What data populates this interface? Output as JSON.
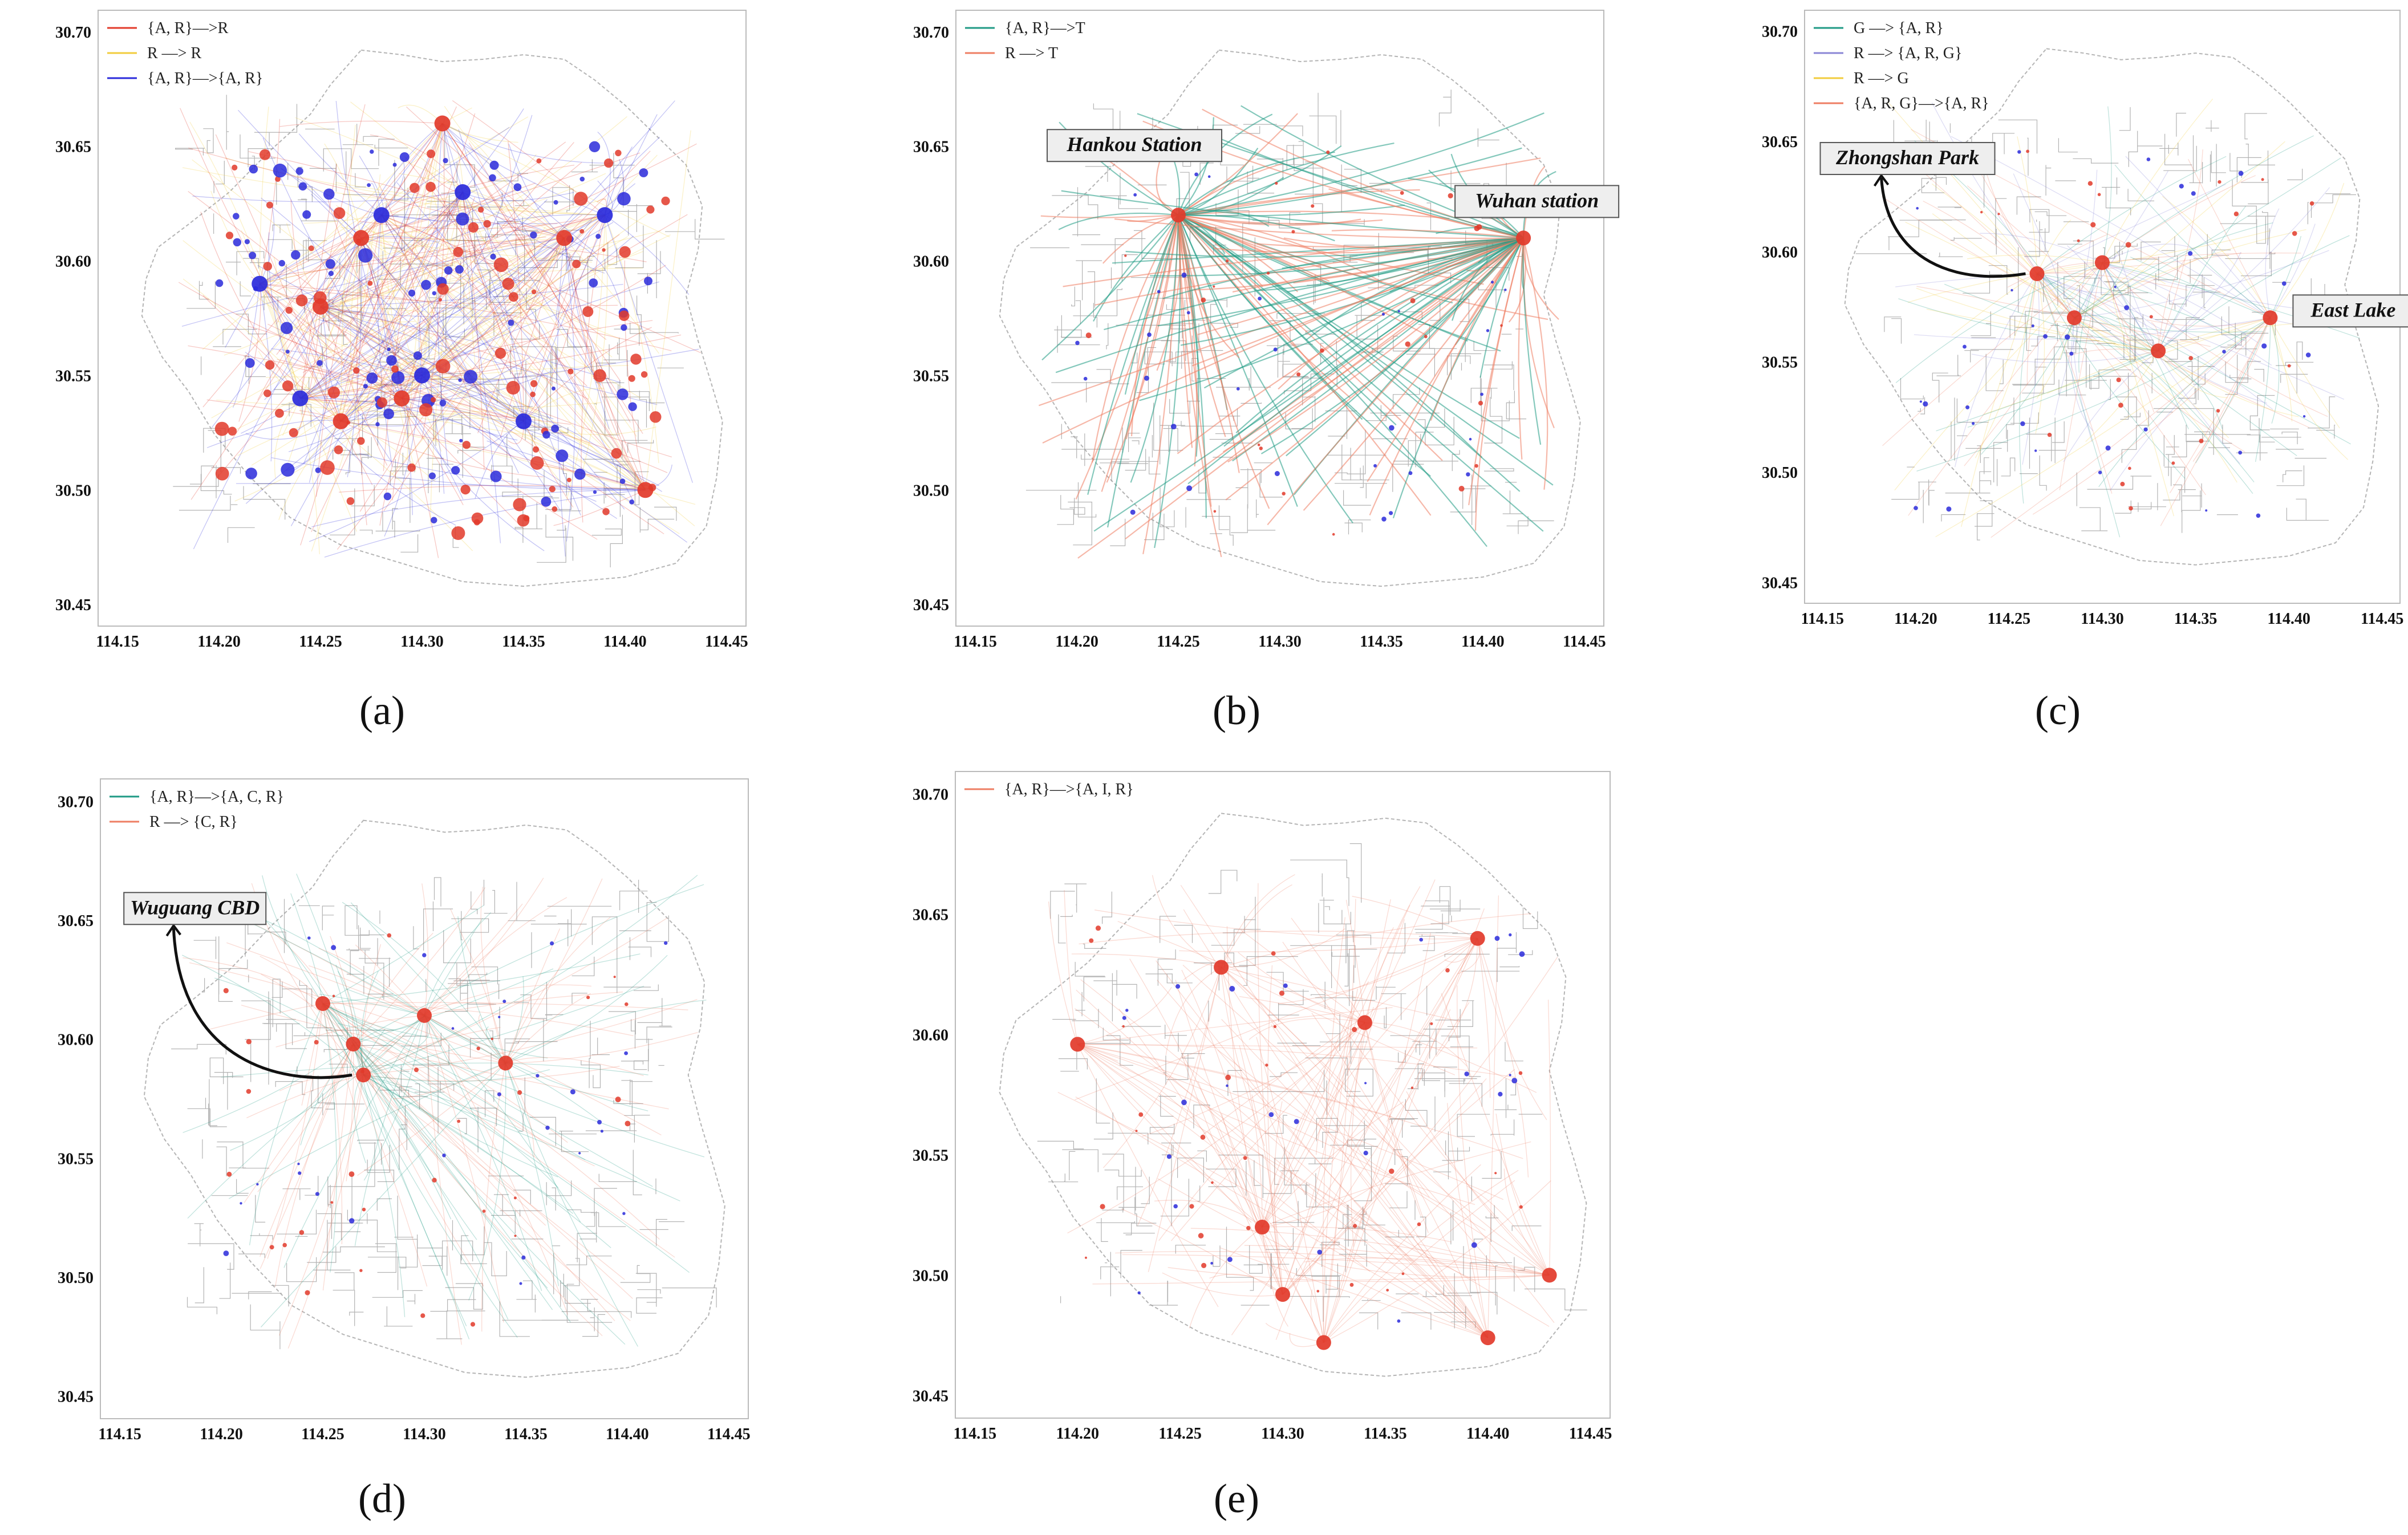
{
  "figure": {
    "colors": {
      "red": "#e23a2a",
      "blue": "#2a2adb",
      "teal": "#1f9a84",
      "orange": "#ee7e63",
      "yellow": "#f2cc3d",
      "purple": "#8a86d6",
      "road": "#9a9a9a",
      "frame": "#bbbbbb"
    }
  },
  "chart_data": [
    {
      "panel": "a",
      "caption": "(a)",
      "type": "scatter",
      "xlim": [
        114.15,
        114.45
      ],
      "ylim": [
        30.45,
        30.7
      ],
      "xticks": [
        "114.15",
        "114.20",
        "114.25",
        "114.30",
        "114.35",
        "114.40",
        "114.45"
      ],
      "yticks": [
        "30.45",
        "30.50",
        "30.55",
        "30.60",
        "30.65",
        "30.70"
      ],
      "legend": [
        {
          "label": "{A, R}—>R",
          "color": "red"
        },
        {
          "label": "R —> R",
          "color": "yellow"
        },
        {
          "label": "{A, R}—>{A, R}",
          "color": "blue"
        }
      ],
      "annotations": [],
      "hubs": [
        {
          "x": 114.27,
          "y": 30.61,
          "series": "red"
        },
        {
          "x": 114.28,
          "y": 30.62,
          "series": "blue"
        },
        {
          "x": 114.25,
          "y": 30.58,
          "series": "red"
        },
        {
          "x": 114.22,
          "y": 30.59,
          "series": "blue"
        },
        {
          "x": 114.3,
          "y": 30.55,
          "series": "blue"
        },
        {
          "x": 114.32,
          "y": 30.63,
          "series": "blue"
        },
        {
          "x": 114.39,
          "y": 30.62,
          "series": "blue"
        },
        {
          "x": 114.37,
          "y": 30.61,
          "series": "red"
        },
        {
          "x": 114.35,
          "y": 30.53,
          "series": "blue"
        },
        {
          "x": 114.29,
          "y": 30.54,
          "series": "red"
        },
        {
          "x": 114.24,
          "y": 30.54,
          "series": "blue"
        },
        {
          "x": 114.41,
          "y": 30.5,
          "series": "red"
        },
        {
          "x": 114.26,
          "y": 30.53,
          "series": "red"
        },
        {
          "x": 114.31,
          "y": 30.66,
          "series": "red"
        }
      ]
    },
    {
      "panel": "b",
      "caption": "(b)",
      "type": "scatter",
      "xlim": [
        114.15,
        114.45
      ],
      "ylim": [
        30.45,
        30.7
      ],
      "xticks": [
        "114.15",
        "114.20",
        "114.25",
        "114.30",
        "114.35",
        "114.40",
        "114.45"
      ],
      "yticks": [
        "30.45",
        "30.50",
        "30.55",
        "30.60",
        "30.65",
        "30.70"
      ],
      "legend": [
        {
          "label": "{A, R}—>T",
          "color": "teal"
        },
        {
          "label": "R —> T",
          "color": "orange"
        }
      ],
      "annotations": [
        {
          "text": "Hankou Station",
          "x": 114.25,
          "y": 30.62
        },
        {
          "text": "Wuhan station",
          "x": 114.42,
          "y": 30.61
        }
      ],
      "hubs": [
        {
          "x": 114.25,
          "y": 30.62,
          "series": "red"
        },
        {
          "x": 114.42,
          "y": 30.61,
          "series": "red"
        }
      ]
    },
    {
      "panel": "c",
      "caption": "(c)",
      "type": "scatter",
      "xlim": [
        114.15,
        114.45
      ],
      "ylim": [
        30.45,
        30.7
      ],
      "xticks": [
        "114.15",
        "114.20",
        "114.25",
        "114.30",
        "114.35",
        "114.40",
        "114.45"
      ],
      "yticks": [
        "30.45",
        "30.50",
        "30.55",
        "30.60",
        "30.65",
        "30.70"
      ],
      "legend": [
        {
          "label": "G —> {A, R}",
          "color": "teal"
        },
        {
          "label": "R —> {A, R, G}",
          "color": "purple"
        },
        {
          "label": "R —> G",
          "color": "yellow"
        },
        {
          "label": "{A, R, G}—>{A, R}",
          "color": "orange"
        }
      ],
      "annotations": [
        {
          "text": "Zhongshan Park",
          "x": 114.265,
          "y": 30.59
        },
        {
          "text": "East Lake",
          "x": 114.39,
          "y": 30.57
        }
      ],
      "hubs": [
        {
          "x": 114.265,
          "y": 30.59,
          "series": "red"
        },
        {
          "x": 114.39,
          "y": 30.57,
          "series": "red"
        },
        {
          "x": 114.285,
          "y": 30.57,
          "series": "red"
        },
        {
          "x": 114.3,
          "y": 30.595,
          "series": "red"
        },
        {
          "x": 114.33,
          "y": 30.555,
          "series": "red"
        }
      ]
    },
    {
      "panel": "d",
      "caption": "(d)",
      "type": "scatter",
      "xlim": [
        114.15,
        114.45
      ],
      "ylim": [
        30.45,
        30.7
      ],
      "xticks": [
        "114.15",
        "114.20",
        "114.25",
        "114.30",
        "114.35",
        "114.40",
        "114.45"
      ],
      "yticks": [
        "30.45",
        "30.50",
        "30.55",
        "30.60",
        "30.65",
        "30.70"
      ],
      "legend": [
        {
          "label": "{A, R}—>{A, C, R}",
          "color": "teal"
        },
        {
          "label": "R —> {C, R}",
          "color": "orange"
        }
      ],
      "annotations": [
        {
          "text": "Wuguang CBD",
          "x": 114.27,
          "y": 30.585
        }
      ],
      "hubs": [
        {
          "x": 114.27,
          "y": 30.585,
          "series": "red"
        },
        {
          "x": 114.265,
          "y": 30.598,
          "series": "red"
        },
        {
          "x": 114.25,
          "y": 30.615,
          "series": "red"
        },
        {
          "x": 114.3,
          "y": 30.61,
          "series": "red"
        },
        {
          "x": 114.34,
          "y": 30.59,
          "series": "red"
        }
      ]
    },
    {
      "panel": "e",
      "caption": "(e)",
      "type": "scatter",
      "xlim": [
        114.15,
        114.45
      ],
      "ylim": [
        30.45,
        30.7
      ],
      "xticks": [
        "114.15",
        "114.20",
        "114.25",
        "114.30",
        "114.35",
        "114.40",
        "114.45"
      ],
      "yticks": [
        "30.45",
        "30.50",
        "30.55",
        "30.60",
        "30.65",
        "30.70"
      ],
      "legend": [
        {
          "label": "{A, R}—>{A, I, R}",
          "color": "orange"
        }
      ],
      "annotations": [],
      "hubs": [
        {
          "x": 114.27,
          "y": 30.628,
          "series": "red"
        },
        {
          "x": 114.34,
          "y": 30.605,
          "series": "red"
        },
        {
          "x": 114.2,
          "y": 30.596,
          "series": "red"
        },
        {
          "x": 114.3,
          "y": 30.492,
          "series": "red"
        },
        {
          "x": 114.4,
          "y": 30.474,
          "series": "red"
        },
        {
          "x": 114.43,
          "y": 30.5,
          "series": "red"
        },
        {
          "x": 114.395,
          "y": 30.64,
          "series": "red"
        },
        {
          "x": 114.32,
          "y": 30.472,
          "series": "red"
        },
        {
          "x": 114.29,
          "y": 30.52,
          "series": "red"
        }
      ]
    }
  ]
}
